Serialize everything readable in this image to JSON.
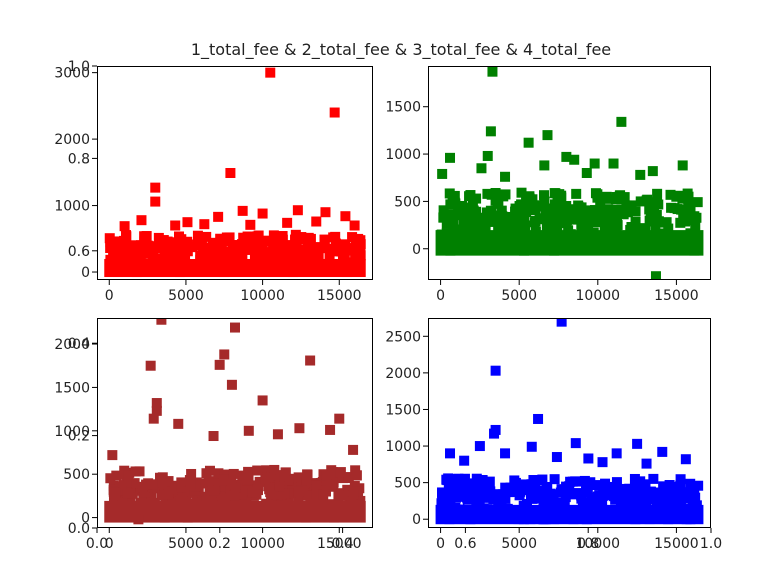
{
  "chart_data": {
    "title": "1_total_fee & 2_total_fee & 3_total_fee & 4_total_fee",
    "background_axis": {
      "xlim": [
        0,
        1
      ],
      "ylim": [
        0,
        1
      ],
      "xticks": [
        "0.0",
        "0.2",
        "0.4",
        "0.6",
        "0.8",
        "1.0"
      ],
      "yticks": [
        "0.0",
        "0.2",
        "0.4",
        "0.6",
        "0.8",
        "1.0"
      ]
    },
    "subplots": [
      {
        "name": "1_total_fee",
        "type": "scatter",
        "marker": "square",
        "color": "#ff0000",
        "xlim": [
          -800,
          17200
        ],
        "ylim": [
          -120,
          3100
        ],
        "xticks": [
          "0",
          "5000",
          "10000",
          "15000"
        ],
        "xtick_values": [
          0,
          5000,
          10000,
          15000
        ],
        "yticks": [
          "0",
          "1000",
          "2000",
          "3000"
        ],
        "ytick_values": [
          0,
          1000,
          2000,
          3000
        ],
        "band": {
          "x_min": 0,
          "x_max": 16400,
          "y_min": 0,
          "y_max": 560
        },
        "outliers": [
          {
            "x": 10500,
            "y": 3000
          },
          {
            "x": 14700,
            "y": 2400
          },
          {
            "x": 7900,
            "y": 1490
          },
          {
            "x": 3000,
            "y": 1270
          },
          {
            "x": 3000,
            "y": 1060
          },
          {
            "x": 12300,
            "y": 930
          },
          {
            "x": 8700,
            "y": 920
          },
          {
            "x": 10000,
            "y": 880
          },
          {
            "x": 14100,
            "y": 900
          },
          {
            "x": 15400,
            "y": 840
          },
          {
            "x": 7100,
            "y": 830
          },
          {
            "x": 2100,
            "y": 780
          },
          {
            "x": 5100,
            "y": 750
          },
          {
            "x": 9200,
            "y": 710
          },
          {
            "x": 11600,
            "y": 740
          },
          {
            "x": 13500,
            "y": 760
          },
          {
            "x": 4300,
            "y": 700
          },
          {
            "x": 1000,
            "y": 690
          },
          {
            "x": 6200,
            "y": 720
          },
          {
            "x": 16000,
            "y": 700
          }
        ]
      },
      {
        "name": "2_total_fee",
        "type": "scatter",
        "marker": "square",
        "color": "#008000",
        "xlim": [
          -800,
          17200
        ],
        "ylim": [
          -330,
          1930
        ],
        "xticks": [
          "0",
          "5000",
          "10000",
          "15000"
        ],
        "xtick_values": [
          0,
          5000,
          10000,
          15000
        ],
        "yticks": [
          "0",
          "500",
          "1000",
          "1500"
        ],
        "ytick_values": [
          0,
          500,
          1000,
          1500
        ],
        "band": {
          "x_min": 0,
          "x_max": 16400,
          "y_min": -20,
          "y_max": 600
        },
        "outliers": [
          {
            "x": 3300,
            "y": 1870
          },
          {
            "x": 11500,
            "y": 1340
          },
          {
            "x": 3200,
            "y": 1240
          },
          {
            "x": 5600,
            "y": 1120
          },
          {
            "x": 6800,
            "y": 1200
          },
          {
            "x": 3000,
            "y": 980
          },
          {
            "x": 600,
            "y": 960
          },
          {
            "x": 8000,
            "y": 970
          },
          {
            "x": 9800,
            "y": 900
          },
          {
            "x": 8500,
            "y": 940
          },
          {
            "x": 15400,
            "y": 880
          },
          {
            "x": 6600,
            "y": 880
          },
          {
            "x": 11000,
            "y": 900
          },
          {
            "x": 2600,
            "y": 850
          },
          {
            "x": 13500,
            "y": 820
          },
          {
            "x": 100,
            "y": 790
          },
          {
            "x": 4100,
            "y": 760
          },
          {
            "x": 12700,
            "y": 780
          },
          {
            "x": 9300,
            "y": 800
          },
          {
            "x": 13700,
            "y": -290
          }
        ]
      },
      {
        "name": "3_total_fee",
        "type": "scatter",
        "marker": "square",
        "color": "#a52a2a",
        "xlim": [
          -800,
          17200
        ],
        "ylim": [
          -120,
          2300
        ],
        "xticks": [
          "0",
          "5000",
          "10000",
          "15000"
        ],
        "xtick_values": [
          0,
          5000,
          10000,
          15000
        ],
        "yticks": [
          "0",
          "500",
          "1000",
          "1500",
          "2000"
        ],
        "ytick_values": [
          0,
          500,
          1000,
          1500,
          2000
        ],
        "band": {
          "x_min": 0,
          "x_max": 16400,
          "y_min": 0,
          "y_max": 550
        },
        "outliers": [
          {
            "x": 3400,
            "y": 2280
          },
          {
            "x": 8200,
            "y": 2190
          },
          {
            "x": 7500,
            "y": 1880
          },
          {
            "x": 7200,
            "y": 1760
          },
          {
            "x": 2700,
            "y": 1750
          },
          {
            "x": 13100,
            "y": 1810
          },
          {
            "x": 8000,
            "y": 1530
          },
          {
            "x": 10000,
            "y": 1350
          },
          {
            "x": 3100,
            "y": 1320
          },
          {
            "x": 3100,
            "y": 1230
          },
          {
            "x": 15000,
            "y": 1140
          },
          {
            "x": 2900,
            "y": 1140
          },
          {
            "x": 12400,
            "y": 1030
          },
          {
            "x": 4500,
            "y": 1080
          },
          {
            "x": 9100,
            "y": 1000
          },
          {
            "x": 14400,
            "y": 1010
          },
          {
            "x": 6800,
            "y": 940
          },
          {
            "x": 11000,
            "y": 960
          },
          {
            "x": 15900,
            "y": 780
          },
          {
            "x": 200,
            "y": 720
          },
          {
            "x": 1900,
            "y": -20
          }
        ]
      },
      {
        "name": "4_total_fee",
        "type": "scatter",
        "marker": "square",
        "color": "#0000ff",
        "xlim": [
          -800,
          17200
        ],
        "ylim": [
          -120,
          2750
        ],
        "xticks": [
          "0",
          "5000",
          "10000",
          "15000"
        ],
        "xtick_values": [
          0,
          5000,
          10000,
          15000
        ],
        "yticks": [
          "0",
          "500",
          "1000",
          "1500",
          "2000",
          "2500"
        ],
        "ytick_values": [
          0,
          500,
          1000,
          1500,
          2000,
          2500
        ],
        "band": {
          "x_min": 0,
          "x_max": 16400,
          "y_min": 0,
          "y_max": 560
        },
        "outliers": [
          {
            "x": 7700,
            "y": 2700
          },
          {
            "x": 3500,
            "y": 2030
          },
          {
            "x": 6200,
            "y": 1370
          },
          {
            "x": 3500,
            "y": 1220
          },
          {
            "x": 3400,
            "y": 1170
          },
          {
            "x": 8600,
            "y": 1040
          },
          {
            "x": 12500,
            "y": 1030
          },
          {
            "x": 5800,
            "y": 990
          },
          {
            "x": 2500,
            "y": 1000
          },
          {
            "x": 14100,
            "y": 920
          },
          {
            "x": 600,
            "y": 900
          },
          {
            "x": 11200,
            "y": 900
          },
          {
            "x": 4100,
            "y": 900
          },
          {
            "x": 9400,
            "y": 830
          },
          {
            "x": 7400,
            "y": 850
          },
          {
            "x": 1500,
            "y": 800
          },
          {
            "x": 15600,
            "y": 820
          },
          {
            "x": 10300,
            "y": 780
          },
          {
            "x": 13100,
            "y": 760
          }
        ]
      }
    ]
  }
}
